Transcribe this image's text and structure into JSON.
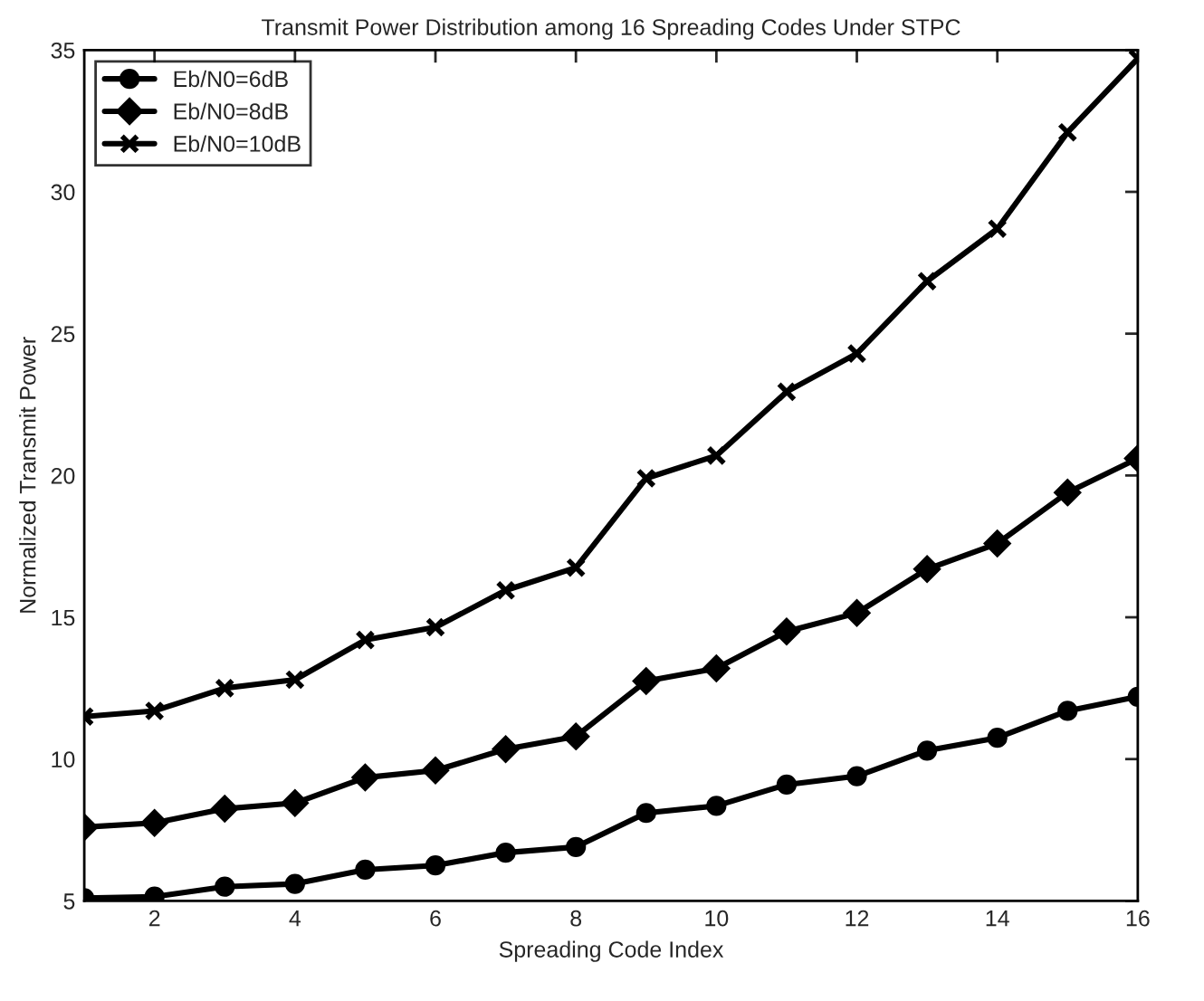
{
  "chart_data": {
    "type": "line",
    "title": "Transmit Power Distribution among 16 Spreading Codes Under STPC",
    "xlabel": "Spreading Code Index",
    "ylabel": "Normalized Transmit Power",
    "x": [
      1,
      2,
      3,
      4,
      5,
      6,
      7,
      8,
      9,
      10,
      11,
      12,
      13,
      14,
      15,
      16
    ],
    "series": [
      {
        "name": "Eb/N0=6dB",
        "color": "#000000",
        "marker": "circle",
        "values": [
          5.1,
          5.15,
          5.5,
          5.6,
          6.1,
          6.25,
          6.7,
          6.9,
          8.1,
          8.35,
          9.1,
          9.4,
          10.3,
          10.75,
          11.7,
          12.2
        ]
      },
      {
        "name": "Eb/N0=8dB",
        "color": "#000000",
        "marker": "diamond",
        "values": [
          7.6,
          7.75,
          8.25,
          8.45,
          9.35,
          9.6,
          10.35,
          10.8,
          12.75,
          13.2,
          14.5,
          15.15,
          16.7,
          17.6,
          19.4,
          20.6
        ]
      },
      {
        "name": "Eb/N0=10dB",
        "color": "#000000",
        "marker": "cross",
        "values": [
          11.5,
          11.7,
          12.5,
          12.8,
          14.2,
          14.65,
          15.95,
          16.75,
          19.9,
          20.7,
          22.95,
          24.3,
          26.85,
          28.7,
          32.1,
          34.7
        ]
      }
    ],
    "xlim": [
      1,
      16
    ],
    "xticks": [
      2,
      4,
      6,
      8,
      10,
      12,
      14,
      16
    ],
    "ylim": [
      5,
      35
    ],
    "yticks": [
      5,
      10,
      15,
      20,
      25,
      30,
      35
    ],
    "grid": false,
    "legend": "top left",
    "line_style": "solid"
  }
}
